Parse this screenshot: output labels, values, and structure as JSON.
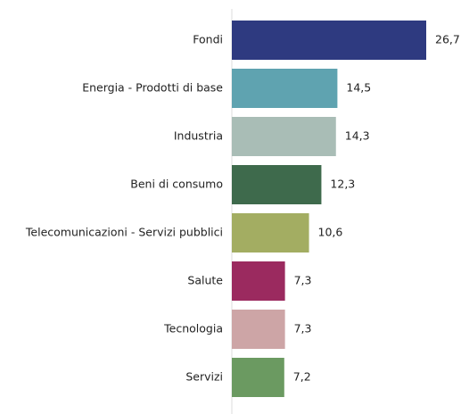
{
  "chart_data": {
    "type": "bar",
    "orientation": "horizontal",
    "categories": [
      "Fondi",
      "Energia - Prodotti di base",
      "Industria",
      "Beni di consumo",
      "Telecomunicazioni - Servizi pubblici",
      "Salute",
      "Tecnologia",
      "Servizi"
    ],
    "values": [
      26.7,
      14.5,
      14.3,
      12.3,
      10.6,
      7.3,
      7.3,
      7.2
    ],
    "value_labels": [
      "26,7",
      "14,5",
      "14,3",
      "12,3",
      "10,6",
      "7,3",
      "7,3",
      "7,2"
    ],
    "colors": [
      "#2e3a80",
      "#5fa3b0",
      "#a9bdb6",
      "#3e6a4c",
      "#a3ad62",
      "#9b2a5f",
      "#cda5a6",
      "#6b9a61"
    ]
  }
}
